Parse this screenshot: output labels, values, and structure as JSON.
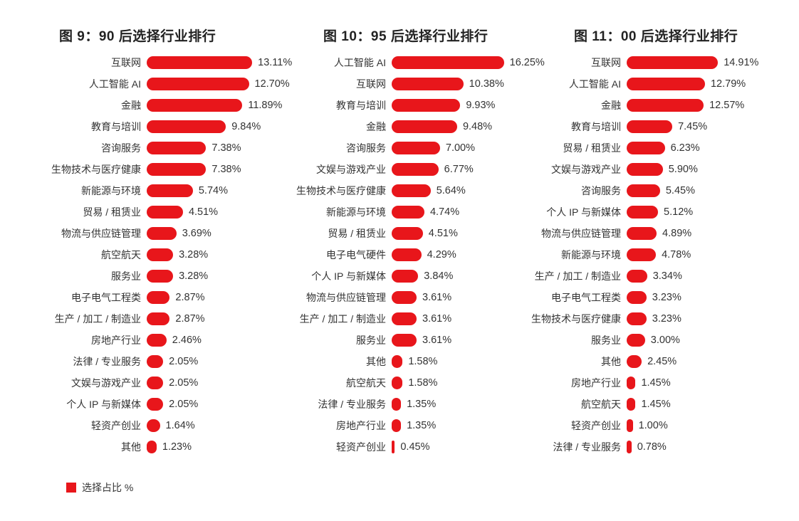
{
  "chart_data": [
    {
      "type": "bar",
      "orientation": "horizontal",
      "title": "图 9：90 后选择行业排行",
      "categories": [
        "互联网",
        "人工智能 AI",
        "金融",
        "教育与培训",
        "咨询服务",
        "生物技术与医疗健康",
        "新能源与环境",
        "贸易 / 租赁业",
        "物流与供应链管理",
        "航空航天",
        "服务业",
        "电子电气工程类",
        "生产 / 加工 / 制造业",
        "房地产行业",
        "法律 / 专业服务",
        "文娱与游戏产业",
        "个人 IP 与新媒体",
        "轻资产创业",
        "其他"
      ],
      "values": [
        13.11,
        12.7,
        11.89,
        9.84,
        7.38,
        7.38,
        5.74,
        4.51,
        3.69,
        3.28,
        3.28,
        2.87,
        2.87,
        2.46,
        2.05,
        2.05,
        2.05,
        1.64,
        1.23
      ],
      "labels": [
        "13.11%",
        "12.70%",
        "11.89%",
        "9.84%",
        "7.38%",
        "7.38%",
        "5.74%",
        "4.51%",
        "3.69%",
        "3.28%",
        "3.28%",
        "2.87%",
        "2.87%",
        "2.46%",
        "2.05%",
        "2.05%",
        "2.05%",
        "1.64%",
        "1.23%"
      ]
    },
    {
      "type": "bar",
      "orientation": "horizontal",
      "title": "图 10：95 后选择行业排行",
      "categories": [
        "人工智能 AI",
        "互联网",
        "教育与培训",
        "金融",
        "咨询服务",
        "文娱与游戏产业",
        "生物技术与医疗健康",
        "新能源与环境",
        "贸易 / 租赁业",
        "电子电气硬件",
        "个人 IP 与新媒体",
        "物流与供应链管理",
        "生产 / 加工 / 制造业",
        "服务业",
        "其他",
        "航空航天",
        "法律 / 专业服务",
        "房地产行业",
        "轻资产创业"
      ],
      "values": [
        16.25,
        10.38,
        9.93,
        9.48,
        7.0,
        6.77,
        5.64,
        4.74,
        4.51,
        4.29,
        3.84,
        3.61,
        3.61,
        3.61,
        1.58,
        1.58,
        1.35,
        1.35,
        0.45
      ],
      "labels": [
        "16.25%",
        "10.38%",
        "9.93%",
        "9.48%",
        "7.00%",
        "6.77%",
        "5.64%",
        "4.74%",
        "4.51%",
        "4.29%",
        "3.84%",
        "3.61%",
        "3.61%",
        "3.61%",
        "1.58%",
        "1.58%",
        "1.35%",
        "1.35%",
        "0.45%"
      ]
    },
    {
      "type": "bar",
      "orientation": "horizontal",
      "title": "图 11：00 后选择行业排行",
      "categories": [
        "互联网",
        "人工智能 AI",
        "金融",
        "教育与培训",
        "贸易 / 租赁业",
        "文娱与游戏产业",
        "咨询服务",
        "个人 IP 与新媒体",
        "物流与供应链管理",
        "新能源与环境",
        "生产 / 加工 / 制造业",
        "电子电气工程类",
        "生物技术与医疗健康",
        "服务业",
        "其他",
        "房地产行业",
        "航空航天",
        "轻资产创业",
        "法律 / 专业服务"
      ],
      "values": [
        14.91,
        12.79,
        12.57,
        7.45,
        6.23,
        5.9,
        5.45,
        5.12,
        4.89,
        4.78,
        3.34,
        3.23,
        3.23,
        3.0,
        2.45,
        1.45,
        1.45,
        1.0,
        0.78
      ],
      "labels": [
        "14.91%",
        "12.79%",
        "12.57%",
        "7.45%",
        "6.23%",
        "5.90%",
        "5.45%",
        "5.12%",
        "4.89%",
        "4.78%",
        "3.34%",
        "3.23%",
        "3.23%",
        "3.00%",
        "2.45%",
        "1.45%",
        "1.45%",
        "1.00%",
        "0.78%"
      ]
    }
  ],
  "legend": {
    "label": "选择占比 %",
    "color": "#e8161b"
  }
}
